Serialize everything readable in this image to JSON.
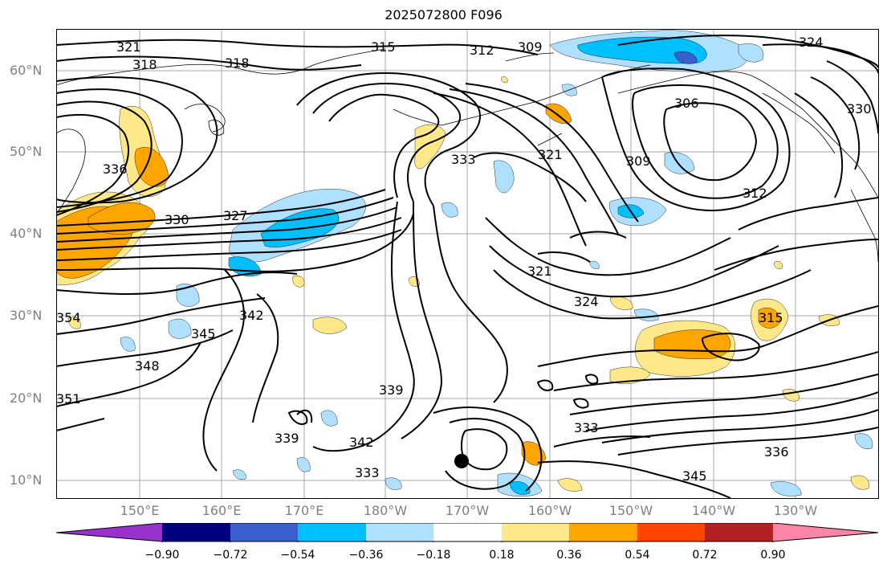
{
  "title": "2025072800 F096",
  "lat_labels": [
    "60°N",
    "50°N",
    "40°N",
    "30°N",
    "20°N",
    "10°N"
  ],
  "lon_labels": [
    "150°E",
    "160°E",
    "170°E",
    "180°W",
    "170°W",
    "160°W",
    "150°W",
    "140°W",
    "130°W"
  ],
  "contour_labels": [
    "321",
    "318",
    "315",
    "312",
    "309",
    "324",
    "306",
    "330",
    "336",
    "330",
    "327",
    "318",
    "333",
    "321",
    "309",
    "312",
    "321",
    "324",
    "315",
    "342",
    "345",
    "348",
    "354",
    "339",
    "339",
    "342",
    "333",
    "333",
    "336",
    "345",
    "351"
  ],
  "colorbar": {
    "ticks": [
      "−0.90",
      "−0.72",
      "−0.54",
      "−0.36",
      "−0.18",
      "0.18",
      "0.36",
      "0.54",
      "0.72",
      "0.90"
    ],
    "colors": [
      "#9932CC",
      "#000080",
      "#3a5fcd",
      "#00bfff",
      "#b0e0ff",
      "#ffffff",
      "#ffe88a",
      "#ffa500",
      "#ff4500",
      "#b22222",
      "#ff85a8"
    ]
  }
}
